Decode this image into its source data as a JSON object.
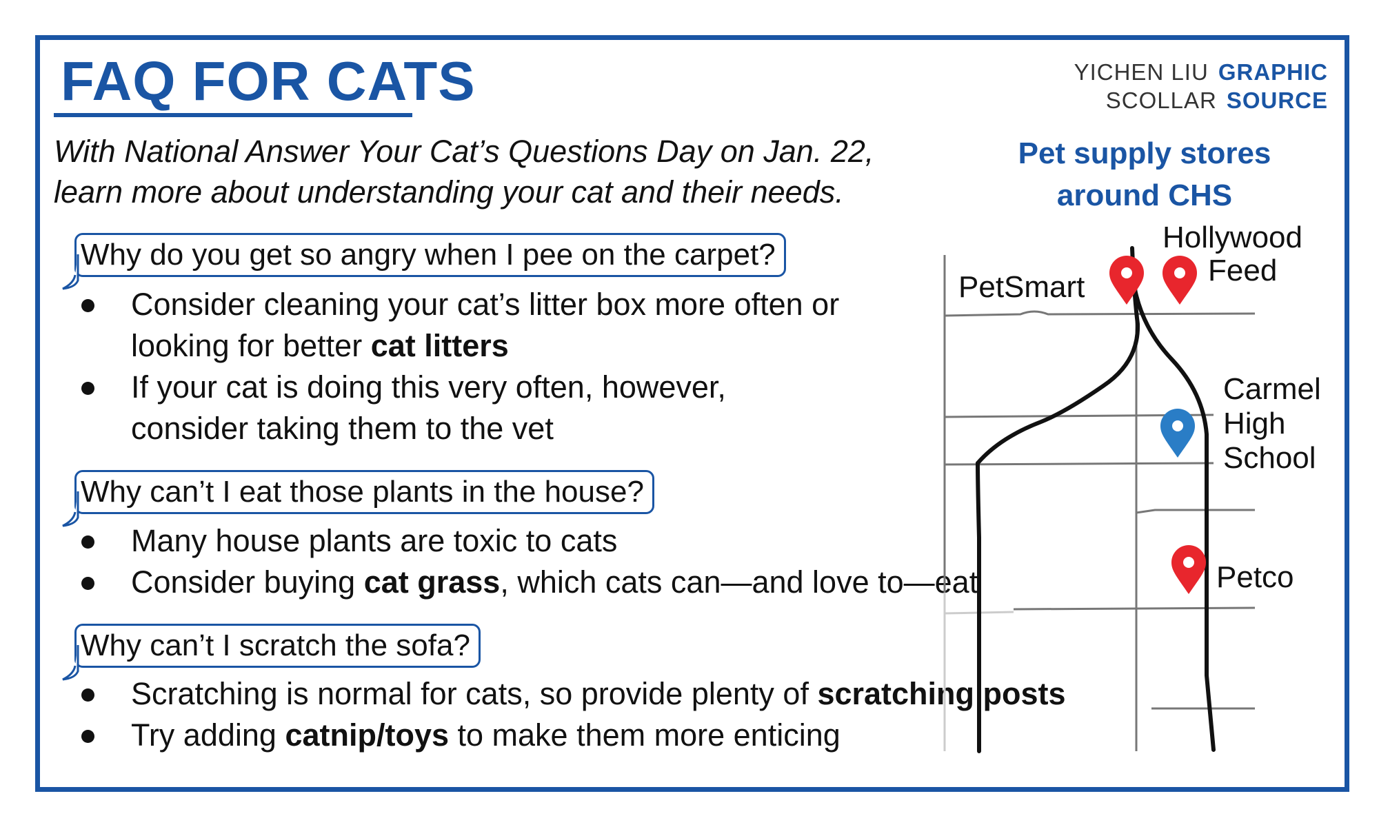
{
  "header": {
    "title": "FAQ FOR CATS",
    "credits": [
      {
        "name": "YICHEN LIU",
        "role": "GRAPHIC"
      },
      {
        "name": "SCOLLAR",
        "role": "SOURCE"
      }
    ]
  },
  "intro": "With National Answer Your Cat’s Questions Day on Jan. 22, learn more about understanding your cat and their needs.",
  "faq": [
    {
      "question": "Why do you get so angry when I pee on the carpet?",
      "answers": [
        {
          "text": "Consider cleaning your cat’s litter box more often or looking for better ",
          "bold": "cat litters",
          "after": ""
        },
        {
          "text": "If your cat is doing this very often, however, consider taking them to the vet",
          "bold": "",
          "after": ""
        }
      ]
    },
    {
      "question": "Why can’t I eat those plants in the house?",
      "answers": [
        {
          "text": "Many house plants are toxic to cats",
          "bold": "",
          "after": ""
        },
        {
          "text": "Consider buying ",
          "bold": "cat grass",
          "after": ", which cats can—and love to—eat"
        }
      ]
    },
    {
      "question": "Why can’t I scratch the sofa?",
      "answers": [
        {
          "text": "Scratching is normal for cats, so provide plenty of ",
          "bold": "scratching posts",
          "after": ""
        },
        {
          "text": "Try adding ",
          "bold": "catnip/toys",
          "after": " to make them more enticing"
        }
      ]
    }
  ],
  "map": {
    "title": "Pet supply stores around CHS",
    "labels": {
      "petsmart": "PetSmart",
      "hollywood_line1": "Hollywood",
      "hollywood_line2": "Feed",
      "carmel_line1": "Carmel",
      "carmel_line2": "High",
      "carmel_line3": "School",
      "petco": "Petco"
    },
    "store_pin_color": "#e8262d",
    "school_pin_color": "#2a7dc6",
    "street_color": "#777777",
    "road_color": "#111111"
  },
  "colors": {
    "accent": "#1a55a4"
  }
}
